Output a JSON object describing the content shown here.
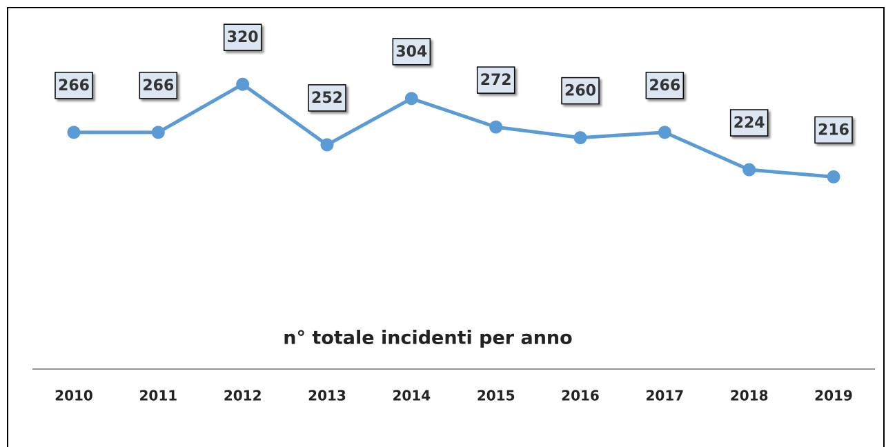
{
  "chart_data": {
    "type": "line",
    "title": "n° totale incidenti per anno",
    "categories": [
      "2010",
      "2011",
      "2012",
      "2013",
      "2014",
      "2015",
      "2016",
      "2017",
      "2018",
      "2019"
    ],
    "series": [
      {
        "name": "n° totale incidenti",
        "color": "#5b9bd5",
        "values": [
          266,
          266,
          320,
          252,
          304,
          272,
          260,
          266,
          224,
          216
        ]
      }
    ],
    "ylim": [
      0,
      400
    ]
  }
}
